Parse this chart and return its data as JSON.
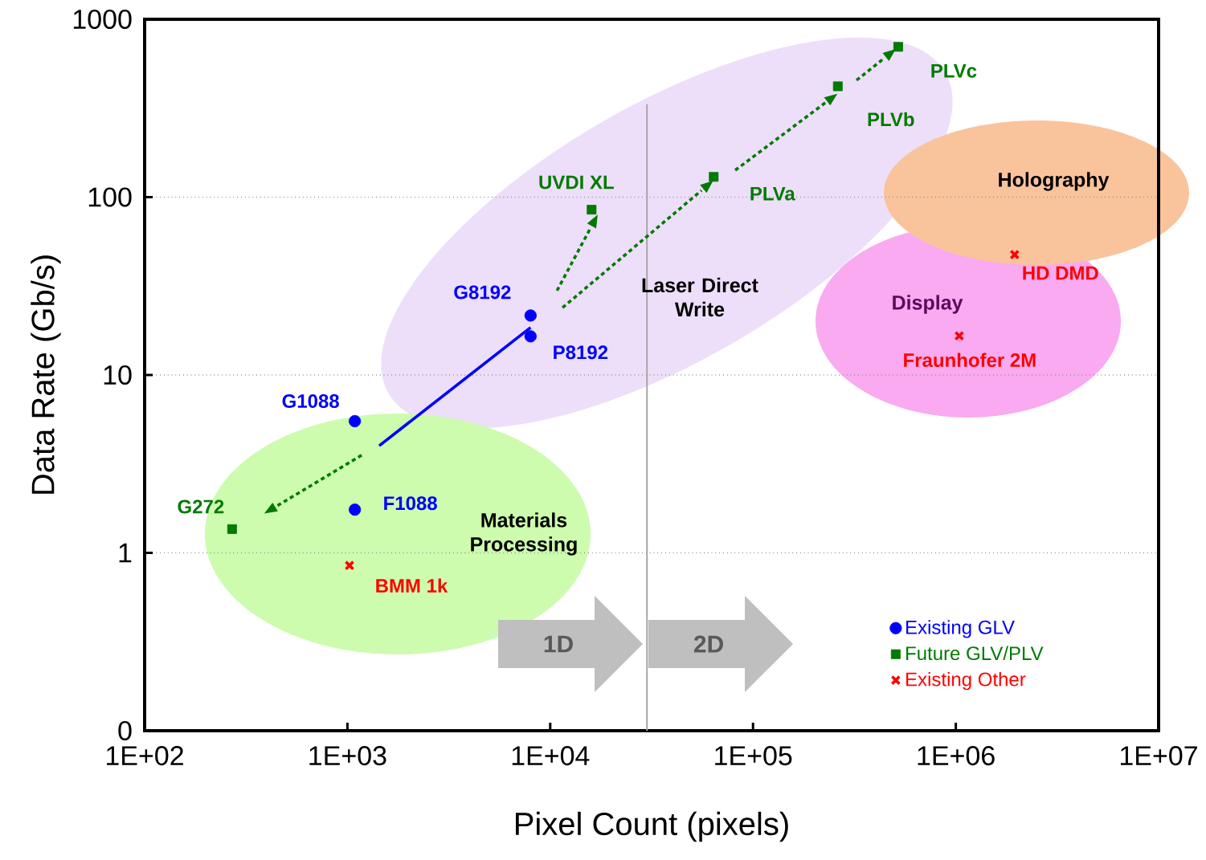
{
  "chart_data": {
    "type": "scatter",
    "xlabel": "Pixel Count  (pixels)",
    "ylabel": "Data Rate (Gb/s)",
    "log": "xy",
    "grid": "y",
    "legend": "bottom right",
    "xlim": [
      100,
      10000000
    ],
    "ylim": [
      0.1,
      1000
    ],
    "xticks": [
      {
        "value": 100,
        "label": "1E+02"
      },
      {
        "value": 1000,
        "label": "1E+03"
      },
      {
        "value": 10000,
        "label": "1E+04"
      },
      {
        "value": 100000,
        "label": "1E+05"
      },
      {
        "value": 1000000,
        "label": "1E+06"
      },
      {
        "value": 10000000,
        "label": "1E+07"
      }
    ],
    "yticks": [
      {
        "value": 0.1,
        "label": "0"
      },
      1,
      10,
      100,
      1000
    ],
    "series": [
      {
        "name": "Existing GLV",
        "color": "#0000ff",
        "marker": "circle",
        "x": [
          8000,
          8000,
          1088,
          1088
        ],
        "values": [
          21.6,
          16.5,
          5.5,
          1.75
        ],
        "value_labels": [
          "G8192",
          "P8192",
          "G1088",
          "F1088"
        ]
      },
      {
        "name": "Future GLV/PLV",
        "color": "#007a00",
        "marker": "square",
        "x": [
          270,
          16000,
          64000,
          262000,
          520000
        ],
        "values": [
          1.36,
          85,
          130,
          420,
          700
        ],
        "value_labels": [
          "G272",
          "UVDI  XL",
          "PLVa",
          "PLVb",
          "PLVc"
        ]
      },
      {
        "name": "Existing Other",
        "color": "#ff0000",
        "marker": "cross",
        "x": [
          1024,
          1950000,
          1040000
        ],
        "values": [
          0.85,
          47.5,
          16.6
        ],
        "value_labels": [
          "BMM  1k",
          "HD DMD",
          "Fraunhofer 2M"
        ]
      },
      {
        "type": "line",
        "color": "#0000ff",
        "line_style": "solid",
        "x": [
          1435,
          8000
        ],
        "values": [
          4.0,
          18.5
        ]
      },
      {
        "type": "line",
        "color": "#007a00",
        "line_style": "dotted",
        "x": [
          1175,
          451
        ],
        "values": [
          3.54,
          1.84
        ]
      },
      {
        "type": "line",
        "color": "#007a00",
        "line_style": "dotted",
        "x": [
          10800,
          15800
        ],
        "values": [
          29.8,
          67
        ]
      },
      {
        "type": "line",
        "color": "#007a00",
        "line_style": "dotted",
        "x": [
          11500,
          55700
        ],
        "values": [
          23.9,
          109
        ]
      },
      {
        "type": "line",
        "color": "#007a00",
        "line_style": "dotted",
        "x": [
          81700,
          227000
        ],
        "values": [
          141.6,
          339
        ]
      },
      {
        "type": "line",
        "color": "#007a00",
        "line_style": "dotted",
        "x": [
          324000,
          442000
        ],
        "values": [
          454,
          602
        ]
      }
    ],
    "ref_lines": [
      {
        "axis": "x",
        "value": 30000,
        "color": "#a6a6a6"
      }
    ],
    "annotations": [
      "Laser Direct Write",
      "Materials Processing",
      "Holography",
      "Display",
      "1D",
      "2D"
    ]
  }
}
